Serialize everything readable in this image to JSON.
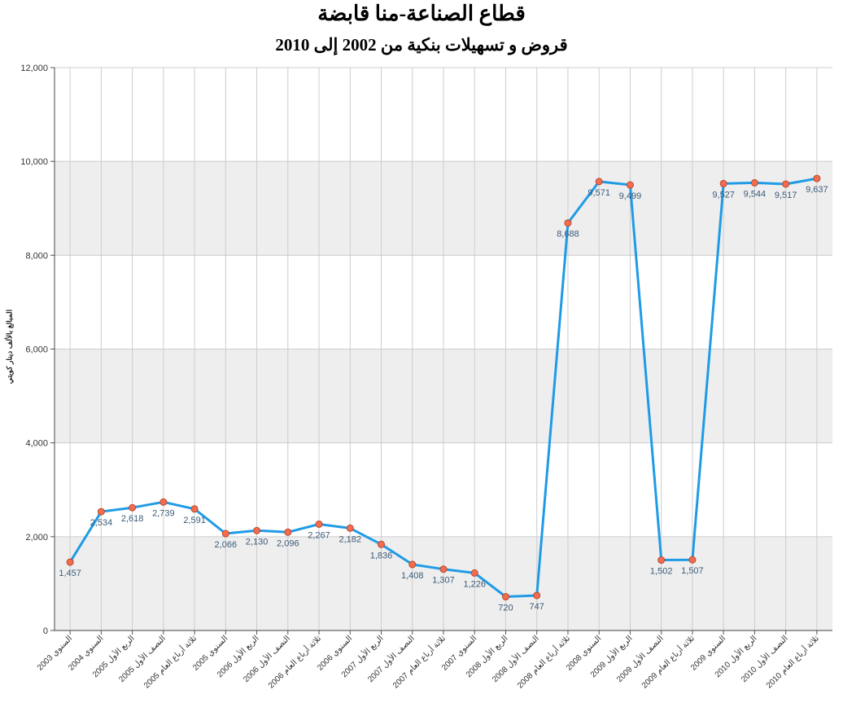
{
  "title": "قطاع الصناعة-منا قابضة",
  "subtitle": "قروض و تسهيلات بنكية من 2002 إلى 2010",
  "chart_data": {
    "type": "line",
    "title": "قطاع الصناعة-منا قابضة",
    "subtitle": "قروض و تسهيلات بنكية من 2002 إلى 2010",
    "xlabel": "",
    "ylabel": "المبالغ بالألف دينار كويتي",
    "ylim": [
      0,
      12000
    ],
    "yticks": [
      "0",
      "2,000",
      "4,000",
      "6,000",
      "8,000",
      "10,000",
      "12,000"
    ],
    "grid": true,
    "legend": "none",
    "colors": {
      "line": "#1f9be6",
      "marker_fill": "#f26d4f",
      "marker_stroke": "#b8472e",
      "band": "#eeeeee",
      "grid": "#cccccc",
      "label": "#3a5a78"
    },
    "categories": [
      "السنوي 2003",
      "السنوي 2004",
      "الربع الأول 2005",
      "النصف الأول 2005",
      "ثلاثة أرباع العام 2005",
      "السنوي 2005",
      "الربع الأول 2006",
      "النصف الأول 2006",
      "ثلاثة أرباع العام 2006",
      "السنوي 2006",
      "الربع الأول 2007",
      "النصف الأول 2007",
      "ثلاثة أرباع العام 2007",
      "السنوي 2007",
      "الربع الأول 2008",
      "النصف الأول 2008",
      "ثلاثة أرباع العام 2008",
      "السنوي 2008",
      "الربع الأول 2009",
      "النصف الأول 2009",
      "ثلاثة أرباع العام 2009",
      "السنوي 2009",
      "الربع الأول 2010",
      "النصف الأول 2010",
      "ثلاثة أرباع العام 2010"
    ],
    "values": [
      1457,
      2534,
      2618,
      2739,
      2591,
      2066,
      2130,
      2096,
      2267,
      2182,
      1836,
      1408,
      1307,
      1226,
      720,
      747,
      8688,
      9571,
      9499,
      1502,
      1507,
      9527,
      9544,
      9517,
      9637
    ],
    "value_labels": [
      "1,457",
      "2,534",
      "2,618",
      "2,739",
      "2,591",
      "2,066",
      "2,130",
      "2,096",
      "2,267",
      "2,182",
      "1,836",
      "1,408",
      "1,307",
      "1,226",
      "720",
      "747",
      "8,688",
      "9,571",
      "9,499",
      "1,502",
      "1,507",
      "9,527",
      "9,544",
      "9,517",
      "9,637"
    ]
  }
}
